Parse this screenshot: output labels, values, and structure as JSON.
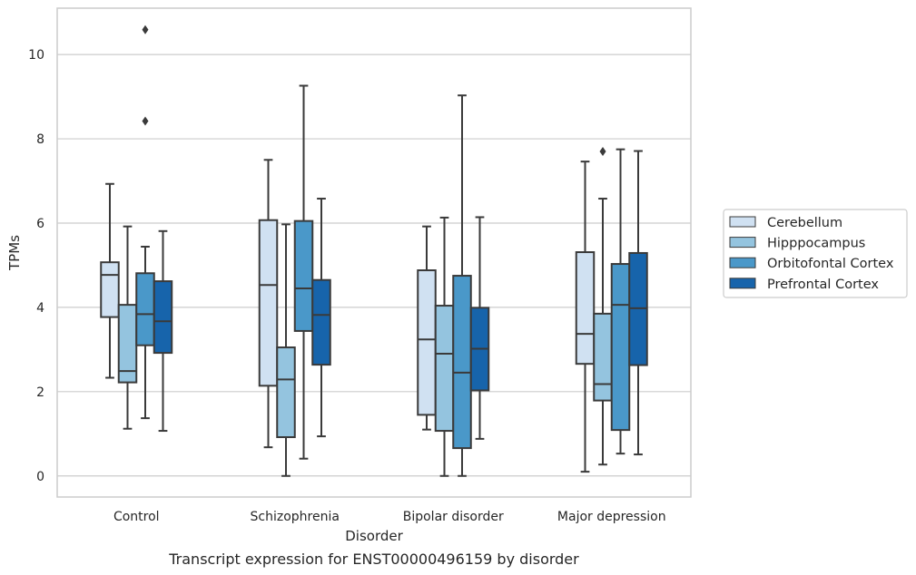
{
  "chart_data": {
    "type": "box",
    "caption": "Transcript expression for ENST00000496159 by disorder",
    "xlabel": "Disorder",
    "ylabel": "TPMs",
    "ylim": [
      -0.5,
      11.1
    ],
    "yticks": [
      0,
      2,
      4,
      6,
      8,
      10
    ],
    "grid": "horizontal",
    "legend_position": "right",
    "categories": [
      "Control",
      "Schizophrenia",
      "Bipolar disorder",
      "Major depression"
    ],
    "series": [
      {
        "name": "Cerebellum",
        "color": "#d0e1f2",
        "boxes": [
          {
            "whislo": 2.33,
            "q1": 3.77,
            "med": 4.77,
            "q3": 5.07,
            "whishi": 6.93,
            "fliers": []
          },
          {
            "whislo": 0.68,
            "q1": 2.14,
            "med": 4.53,
            "q3": 6.07,
            "whishi": 7.5,
            "fliers": []
          },
          {
            "whislo": 1.1,
            "q1": 1.45,
            "med": 3.24,
            "q3": 4.88,
            "whishi": 5.92,
            "fliers": []
          },
          {
            "whislo": 0.1,
            "q1": 2.66,
            "med": 3.37,
            "q3": 5.31,
            "whishi": 7.46,
            "fliers": []
          }
        ]
      },
      {
        "name": "Hipppocampus",
        "color": "#94c4df",
        "boxes": [
          {
            "whislo": 1.12,
            "q1": 2.22,
            "med": 2.49,
            "q3": 4.06,
            "whishi": 5.92,
            "fliers": []
          },
          {
            "whislo": 0.0,
            "q1": 0.92,
            "med": 2.29,
            "q3": 3.05,
            "whishi": 5.97,
            "fliers": []
          },
          {
            "whislo": 0.0,
            "q1": 1.07,
            "med": 2.9,
            "q3": 4.04,
            "whishi": 6.13,
            "fliers": []
          },
          {
            "whislo": 0.27,
            "q1": 1.79,
            "med": 2.18,
            "q3": 3.85,
            "whishi": 6.58,
            "fliers": [
              7.7
            ]
          }
        ]
      },
      {
        "name": "Orbitofontal Cortex",
        "color": "#4a98c9",
        "boxes": [
          {
            "whislo": 1.37,
            "q1": 3.1,
            "med": 3.84,
            "q3": 4.81,
            "whishi": 5.44,
            "fliers": [
              8.42,
              10.59
            ]
          },
          {
            "whislo": 0.41,
            "q1": 3.44,
            "med": 4.45,
            "q3": 6.05,
            "whishi": 9.26,
            "fliers": []
          },
          {
            "whislo": 0.0,
            "q1": 0.66,
            "med": 2.45,
            "q3": 4.75,
            "whishi": 9.03,
            "fliers": []
          },
          {
            "whislo": 0.53,
            "q1": 1.09,
            "med": 4.06,
            "q3": 5.03,
            "whishi": 7.75,
            "fliers": []
          }
        ]
      },
      {
        "name": "Prefrontal Cortex",
        "color": "#1764ab",
        "boxes": [
          {
            "whislo": 1.07,
            "q1": 2.92,
            "med": 3.67,
            "q3": 4.62,
            "whishi": 5.81,
            "fliers": []
          },
          {
            "whislo": 0.94,
            "q1": 2.64,
            "med": 3.82,
            "q3": 4.65,
            "whishi": 6.58,
            "fliers": []
          },
          {
            "whislo": 0.88,
            "q1": 2.03,
            "med": 3.02,
            "q3": 3.99,
            "whishi": 6.14,
            "fliers": []
          },
          {
            "whislo": 0.51,
            "q1": 2.63,
            "med": 3.98,
            "q3": 5.29,
            "whishi": 7.71,
            "fliers": []
          }
        ]
      }
    ]
  }
}
